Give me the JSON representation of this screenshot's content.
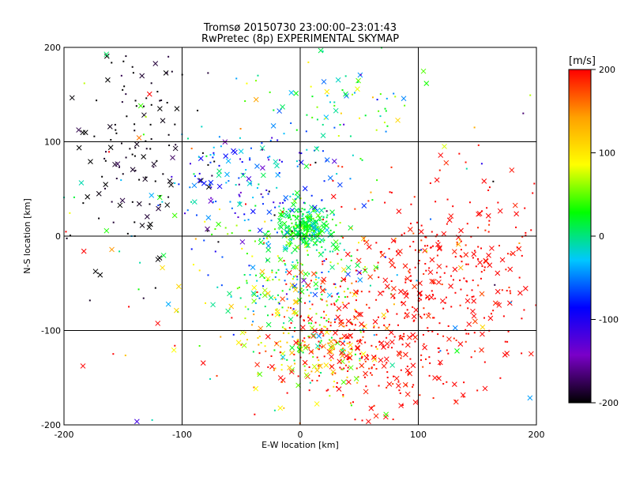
{
  "chart_data": {
    "type": "scatter",
    "title": "Tromsø 20150730 23:00:00–23:01:43",
    "subtitle": "RwPretec (8p) EXPERIMENTAL SKYMAP",
    "xlabel": "E-W location [km]",
    "ylabel": "N-S location [km]",
    "xlim": [
      -200,
      200
    ],
    "ylim": [
      -200,
      200
    ],
    "xticks": [
      -200,
      -100,
      0,
      100,
      200
    ],
    "yticks": [
      -200,
      -100,
      0,
      100,
      200
    ],
    "grid": true,
    "marker_styles": [
      "dot",
      "x"
    ],
    "colorbar": {
      "label": "[m/s]",
      "vmin": -200,
      "vmax": 200,
      "ticks": [
        -200,
        -100,
        0,
        100,
        200
      ],
      "colormap": "rainbow",
      "colors": [
        "#000000",
        "#7a00c8",
        "#0000ff",
        "#00c8ff",
        "#00ff00",
        "#ffff00",
        "#ffa000",
        "#ff0000"
      ]
    },
    "clusters": [
      {
        "region": "north-west",
        "cx": -140,
        "cy": 90,
        "sx": 30,
        "sy": 60,
        "v": -200,
        "vspread": 10,
        "count": 140
      },
      {
        "region": "center-north",
        "cx": -40,
        "cy": 60,
        "sx": 40,
        "sy": 30,
        "v": -70,
        "vspread": 40,
        "count": 150
      },
      {
        "region": "origin",
        "cx": 5,
        "cy": 8,
        "sx": 12,
        "sy": 12,
        "v": 20,
        "vspread": 20,
        "count": 260
      },
      {
        "region": "center",
        "cx": -10,
        "cy": -40,
        "sx": 35,
        "sy": 35,
        "v": 10,
        "vspread": 50,
        "count": 220
      },
      {
        "region": "south-center",
        "cx": 10,
        "cy": -110,
        "sx": 30,
        "sy": 30,
        "v": 110,
        "vspread": 60,
        "count": 220
      },
      {
        "region": "south-east",
        "cx": 70,
        "cy": -110,
        "sx": 45,
        "sy": 40,
        "v": 200,
        "vspread": 10,
        "count": 340
      },
      {
        "region": "east",
        "cx": 130,
        "cy": -30,
        "sx": 45,
        "sy": 45,
        "v": 200,
        "vspread": 10,
        "count": 260
      },
      {
        "region": "north-east",
        "cx": 30,
        "cy": 140,
        "sx": 30,
        "sy": 25,
        "v": 0,
        "vspread": 50,
        "count": 60
      },
      {
        "region": "background",
        "cx": 0,
        "cy": 0,
        "sx": 120,
        "sy": 110,
        "v": 60,
        "vspread": 130,
        "count": 200
      }
    ]
  }
}
